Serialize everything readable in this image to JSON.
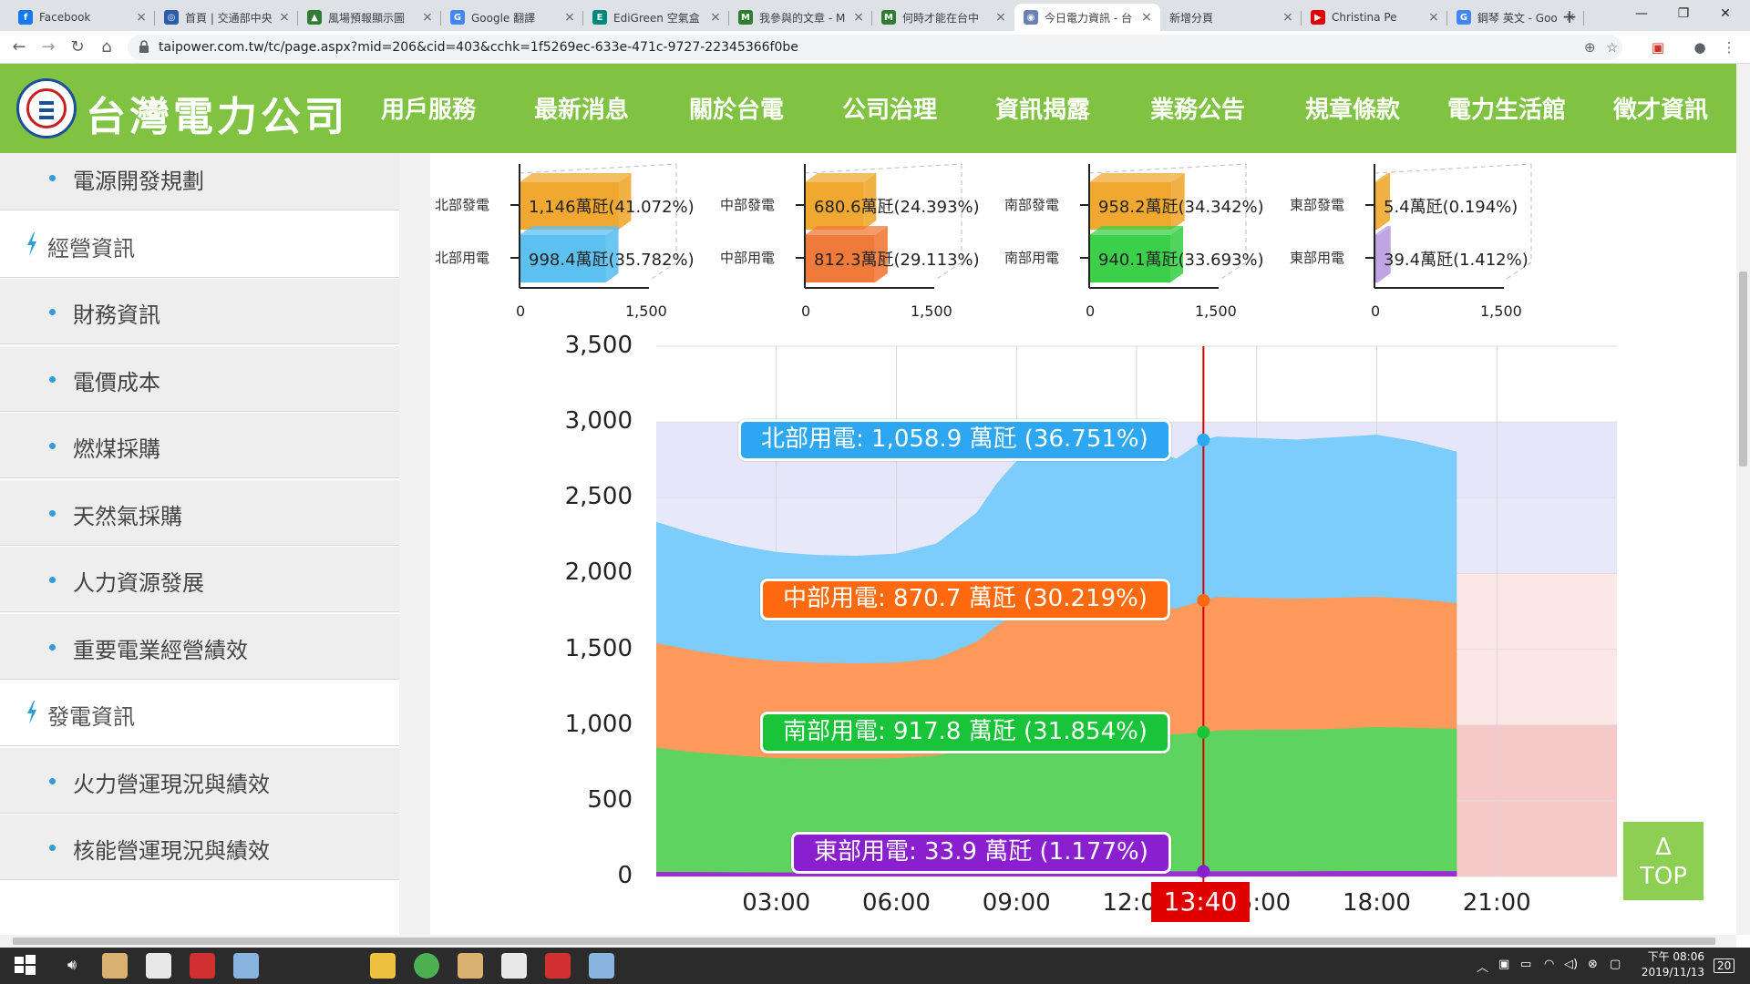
{
  "browser": {
    "tabs": [
      {
        "title": "Facebook",
        "color": "#1877f2",
        "glyph": "f"
      },
      {
        "title": "首頁 | 交通部中央",
        "color": "#2a5caa",
        "glyph": "◎"
      },
      {
        "title": "風場預報顯示圖",
        "color": "#2e7d32",
        "glyph": "▲"
      },
      {
        "title": "Google 翻譯",
        "color": "#4285f4",
        "glyph": "G"
      },
      {
        "title": "EdiGreen 空氣盒",
        "color": "#00897b",
        "glyph": "E"
      },
      {
        "title": "我參與的文章 - M",
        "color": "#2e7d32",
        "glyph": "M"
      },
      {
        "title": "何時才能在台中",
        "color": "#2e7d32",
        "glyph": "M"
      },
      {
        "title": "今日電力資訊 - 台",
        "color": "#6a7fb5",
        "glyph": "◉"
      },
      {
        "title": "新增分頁",
        "color": "",
        "glyph": ""
      },
      {
        "title": "Christina Pe",
        "color": "#e00000",
        "glyph": "▶"
      },
      {
        "title": "鋼琴 英文 - Goo",
        "color": "#4285f4",
        "glyph": "G"
      }
    ],
    "url": "taipower.com.tw/tc/page.aspx?mid=206&cid=403&cchk=1f5269ec-633e-471c-9727-22345366f0be"
  },
  "site": {
    "logo_text": "台灣電力公司",
    "nav": [
      "用戶服務",
      "最新消息",
      "關於台電",
      "公司治理",
      "資訊揭露",
      "業務公告",
      "規章條款",
      "電力生活館",
      "徵才資訊"
    ]
  },
  "sidebar": [
    {
      "type": "sub",
      "label": "電源開發規劃"
    },
    {
      "type": "cat",
      "label": "經營資訊"
    },
    {
      "type": "sub",
      "label": "財務資訊"
    },
    {
      "type": "sub",
      "label": "電價成本"
    },
    {
      "type": "sub",
      "label": "燃煤採購"
    },
    {
      "type": "sub",
      "label": "天然氣採購"
    },
    {
      "type": "sub",
      "label": "人力資源發展"
    },
    {
      "type": "sub",
      "label": "重要電業經營績效"
    },
    {
      "type": "cat",
      "label": "發電資訊"
    },
    {
      "type": "sub",
      "label": "火力營運現況與績效"
    },
    {
      "type": "sub",
      "label": "核能營運現況與績效"
    }
  ],
  "mini_charts": [
    {
      "gen_label": "北部發電",
      "use_label": "北部用電",
      "gen_text": "1,146萬瓩(41.072%)",
      "use_text": "998.4萬瓩(35.782%)",
      "gen": 1146,
      "use": 998.4,
      "gen_color": "#f0a830",
      "use_color": "#5cc0f0",
      "tick0": "0",
      "tick1": "1,500"
    },
    {
      "gen_label": "中部發電",
      "use_label": "中部用電",
      "gen_text": "680.6萬瓩(24.393%)",
      "use_text": "812.3萬瓩(29.113%)",
      "gen": 680.6,
      "use": 812.3,
      "gen_color": "#f0a830",
      "use_color": "#f07a3a",
      "tick0": "0",
      "tick1": "1,500"
    },
    {
      "gen_label": "南部發電",
      "use_label": "南部用電",
      "gen_text": "958.2萬瓩(34.342%)",
      "use_text": "940.1萬瓩(33.693%)",
      "gen": 958.2,
      "use": 940.1,
      "gen_color": "#f0a830",
      "use_color": "#3cd04a",
      "tick0": "0",
      "tick1": "1,500"
    },
    {
      "gen_label": "東部發電",
      "use_label": "東部用電",
      "gen_text": "5.4萬瓩(0.194%)",
      "use_text": "39.4萬瓩(1.412%)",
      "gen": 5.4,
      "use": 39.4,
      "gen_color": "#f0a830",
      "use_color": "#b99be0",
      "tick0": "0",
      "tick1": "1,500"
    }
  ],
  "chart_data": {
    "type": "area",
    "stacked": true,
    "y_ticks": [
      "3,500",
      "3,000",
      "2,500",
      "2,000",
      "1,500",
      "1,000",
      "500",
      "0"
    ],
    "ylim": [
      0,
      3500
    ],
    "x_ticks": [
      "03:00",
      "06:00",
      "09:00",
      "12:00",
      "15:00",
      "18:00",
      "21:00"
    ],
    "xlim_hours": [
      0,
      24
    ],
    "x": [
      0,
      1,
      2,
      3,
      4,
      5,
      6,
      7,
      8,
      8.5,
      9,
      10,
      11,
      12,
      13,
      13.67,
      14,
      15,
      16,
      17,
      18,
      19,
      20
    ],
    "series": [
      {
        "name": "東部用電",
        "color": "#9b30d0",
        "values": [
          30,
          29,
          28,
          27,
          27,
          27,
          27,
          28,
          30,
          32,
          33,
          34,
          34,
          34,
          34,
          33.9,
          34,
          34,
          34,
          35,
          36,
          36,
          35
        ]
      },
      {
        "name": "南部用電",
        "color": "#5fd35f",
        "values": [
          820,
          790,
          770,
          755,
          750,
          750,
          755,
          770,
          820,
          860,
          890,
          910,
          915,
          910,
          905,
          917.8,
          930,
          935,
          935,
          940,
          950,
          945,
          940
        ]
      },
      {
        "name": "中部用電",
        "color": "#ff9a5c",
        "values": [
          690,
          670,
          650,
          640,
          635,
          630,
          630,
          640,
          700,
          760,
          810,
          830,
          840,
          845,
          830,
          870.7,
          880,
          870,
          865,
          865,
          860,
          850,
          830
        ]
      },
      {
        "name": "北部用電",
        "color": "#7ccdfb",
        "values": [
          800,
          770,
          740,
          720,
          710,
          710,
          720,
          760,
          850,
          940,
          1010,
          1040,
          1050,
          1045,
          990,
          1058.9,
          1060,
          1055,
          1050,
          1060,
          1070,
          1040,
          1000
        ]
      }
    ],
    "reserve_bands": {
      "colors": [
        "#f7c8c8",
        "#fde6e6",
        "#e8e8fb"
      ],
      "levels": [
        0,
        1000,
        2000,
        3000
      ]
    },
    "current_time": "13:40",
    "current_hour": 13.67,
    "tooltips": [
      {
        "name": "北部用電",
        "text": "北部用電: 1,058.9 萬瓩 (36.751%)",
        "color": "#2ea7f2",
        "value": 1058.9
      },
      {
        "name": "中部用電",
        "text": "中部用電: 870.7 萬瓩 (30.219%)",
        "color": "#ff6a10",
        "value": 870.7
      },
      {
        "name": "南部用電",
        "text": "南部用電: 917.8 萬瓩 (31.854%)",
        "color": "#19c43a",
        "value": 917.8
      },
      {
        "name": "東部用電",
        "text": "東部用電: 33.9 萬瓩 (1.177%)",
        "color": "#8a1fd0",
        "value": 33.9
      }
    ]
  },
  "top_button": {
    "arrow": "Δ",
    "label": "TOP"
  },
  "taskbar": {
    "time": "下午 08:06",
    "date": "2019/11/13",
    "notif": "20"
  }
}
